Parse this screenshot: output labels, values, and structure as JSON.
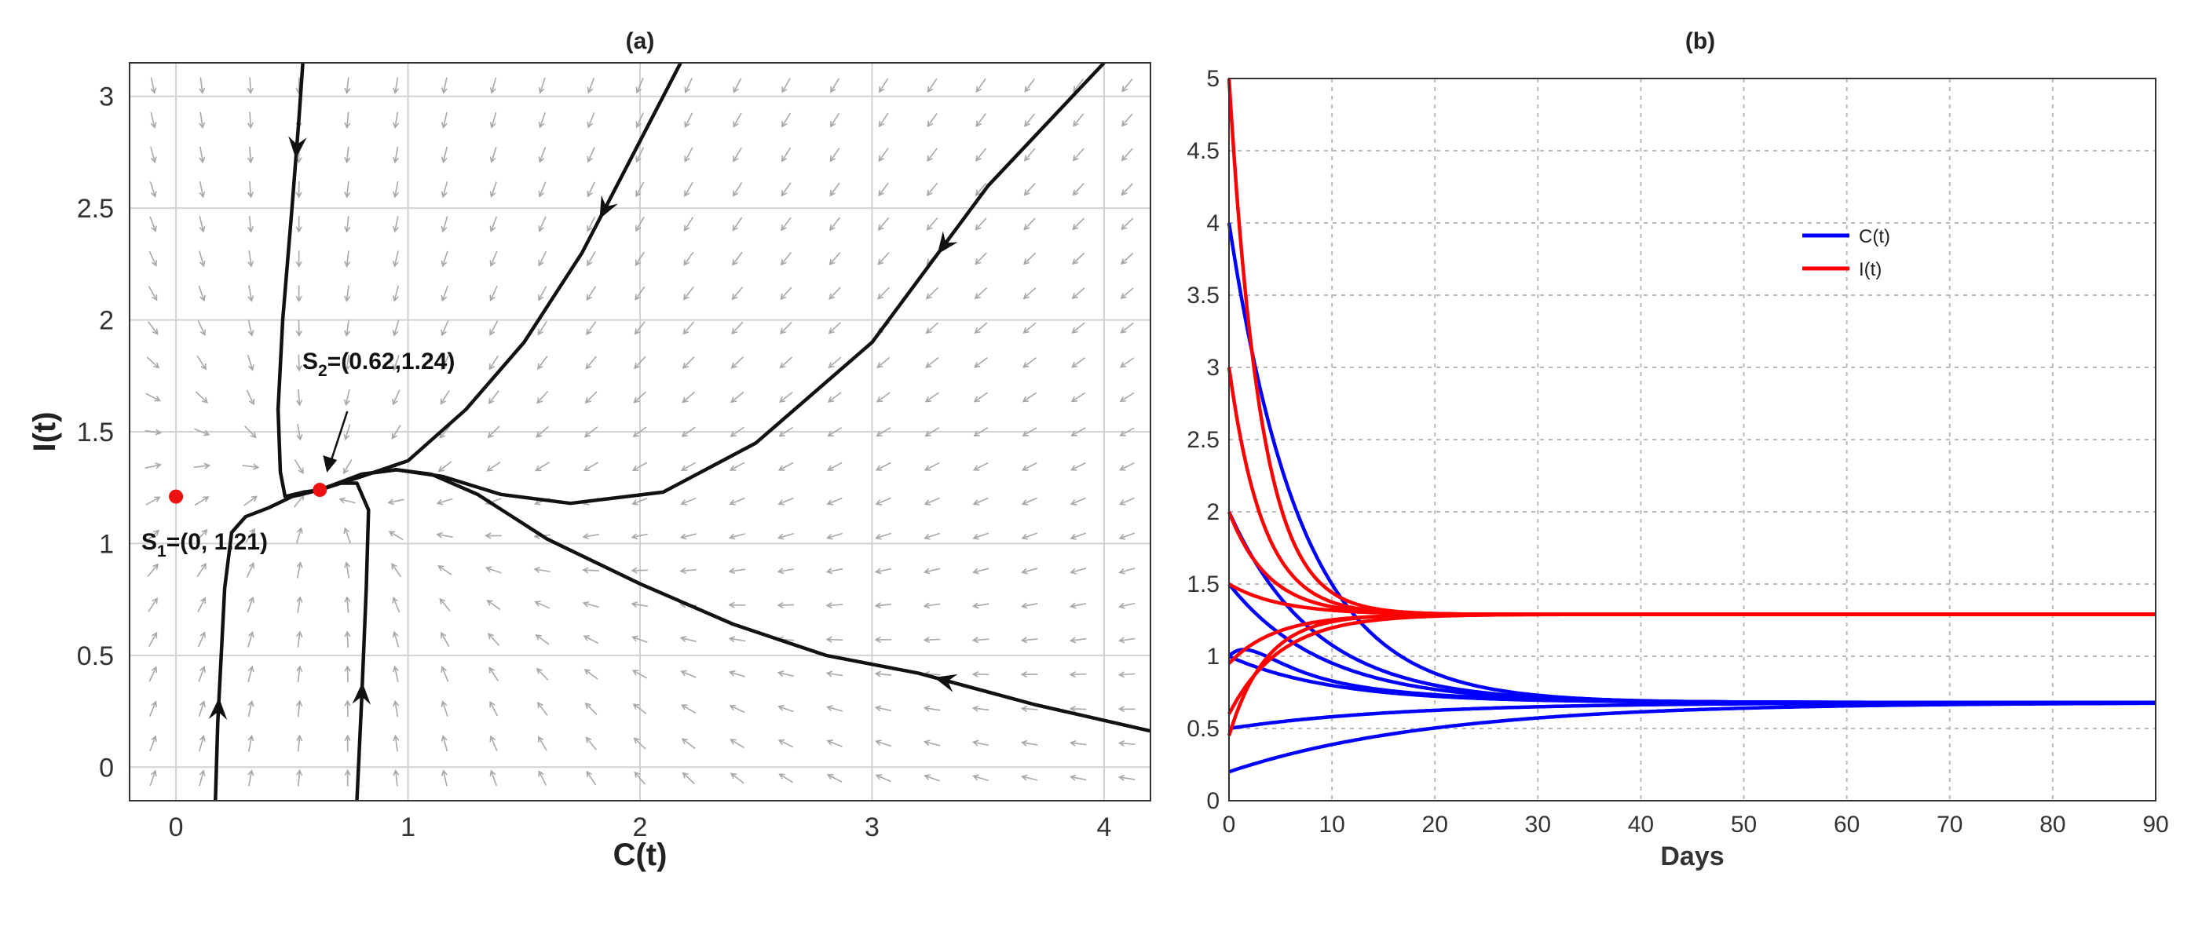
{
  "chart_data": [
    {
      "type": "line",
      "subtype": "phase-portrait",
      "title": "(a)",
      "xlabel": "C(t)",
      "ylabel": "I(t)",
      "xlim": [
        -0.2,
        4.2
      ],
      "ylim": [
        -0.15,
        3.15
      ],
      "xticks": [
        "0",
        "1",
        "2",
        "3",
        "4"
      ],
      "yticks": [
        "0",
        "0.5",
        "1",
        "1.5",
        "2",
        "2.5",
        "3"
      ],
      "grid": true,
      "vector_field": "gray arrows on a regular grid pointing toward the interior equilibrium",
      "equilibria": [
        {
          "name": "S1",
          "sub": "1",
          "value_text": "=(0, 1.21)",
          "x": 0,
          "y": 1.21
        },
        {
          "name": "S2",
          "sub": "2",
          "value_text": "=(0.62,1.24)",
          "x": 0.62,
          "y": 1.24
        }
      ],
      "trajectories": [
        {
          "name": "from-top-left",
          "points": [
            [
              0.55,
              3.2
            ],
            [
              0.53,
              2.9
            ],
            [
              0.5,
              2.5
            ],
            [
              0.46,
              2.0
            ],
            [
              0.44,
              1.6
            ],
            [
              0.45,
              1.32
            ],
            [
              0.47,
              1.21
            ],
            [
              0.55,
              1.23
            ],
            [
              0.62,
              1.24
            ]
          ],
          "arrow_at": 0.2
        },
        {
          "name": "from-top-middle",
          "points": [
            [
              2.2,
              3.2
            ],
            [
              1.95,
              2.7
            ],
            [
              1.75,
              2.3
            ],
            [
              1.5,
              1.9
            ],
            [
              1.25,
              1.6
            ],
            [
              1.0,
              1.37
            ],
            [
              0.8,
              1.3
            ],
            [
              0.62,
              1.24
            ]
          ],
          "arrow_at": 0.3
        },
        {
          "name": "from-top-right",
          "points": [
            [
              4.0,
              3.15
            ],
            [
              3.5,
              2.6
            ],
            [
              3.0,
              1.9
            ],
            [
              2.5,
              1.45
            ],
            [
              2.1,
              1.23
            ],
            [
              1.7,
              1.18
            ],
            [
              1.4,
              1.22
            ],
            [
              1.15,
              1.3
            ],
            [
              0.95,
              1.33
            ],
            [
              0.8,
              1.31
            ],
            [
              0.62,
              1.24
            ]
          ],
          "arrow_at": 0.25
        },
        {
          "name": "from-right",
          "points": [
            [
              4.25,
              0.15
            ],
            [
              3.7,
              0.28
            ],
            [
              3.2,
              0.42
            ],
            [
              2.8,
              0.5
            ],
            [
              2.4,
              0.64
            ],
            [
              2.0,
              0.82
            ],
            [
              1.6,
              1.02
            ],
            [
              1.3,
              1.22
            ],
            [
              1.1,
              1.31
            ],
            [
              0.95,
              1.33
            ],
            [
              0.8,
              1.31
            ],
            [
              0.62,
              1.24
            ]
          ],
          "arrow_at": 0.25
        },
        {
          "name": "from-bottom-left",
          "points": [
            [
              0.17,
              -0.15
            ],
            [
              0.18,
              0.2
            ],
            [
              0.21,
              0.8
            ],
            [
              0.24,
              1.05
            ],
            [
              0.3,
              1.12
            ],
            [
              0.4,
              1.16
            ],
            [
              0.5,
              1.21
            ],
            [
              0.62,
              1.24
            ]
          ],
          "arrow_at": 0.25
        },
        {
          "name": "from-bottom-middle",
          "points": [
            [
              0.78,
              -0.15
            ],
            [
              0.8,
              0.3
            ],
            [
              0.82,
              0.8
            ],
            [
              0.83,
              1.15
            ],
            [
              0.78,
              1.27
            ],
            [
              0.7,
              1.27
            ],
            [
              0.62,
              1.24
            ]
          ],
          "arrow_at": 0.3
        }
      ]
    },
    {
      "type": "line",
      "title": "(b)",
      "xlabel": "Days",
      "ylabel": "",
      "xlim": [
        0,
        90
      ],
      "ylim": [
        0,
        5
      ],
      "xticks": [
        "0",
        "10",
        "20",
        "30",
        "40",
        "50",
        "60",
        "70",
        "80",
        "90"
      ],
      "yticks": [
        "0",
        "0.5",
        "1",
        "1.5",
        "2",
        "2.5",
        "3",
        "3.5",
        "4",
        "4.5",
        "5"
      ],
      "grid": true,
      "legend": [
        {
          "label": "C(t)",
          "color": "#0000ff"
        },
        {
          "label": "I(t)",
          "color": "#ff0000"
        }
      ],
      "legend_position": "upper-middle-right",
      "equilibrium": {
        "C": 0.68,
        "I": 1.29
      },
      "series": [
        {
          "name": "C(t)",
          "color": "#0000ff",
          "c0": 4.0,
          "rate": 0.14
        },
        {
          "name": "C(t)",
          "color": "#0000ff",
          "c0": 2.0,
          "rate": 0.12
        },
        {
          "name": "C(t)",
          "color": "#0000ff",
          "c0": 1.5,
          "rate": 0.11
        },
        {
          "name": "C(t)",
          "color": "#0000ff",
          "c0": 1.0,
          "rate": 0.09,
          "hump": 0.3
        },
        {
          "name": "C(t)",
          "color": "#0000ff",
          "c0": 1.0,
          "rate": 0.1
        },
        {
          "name": "C(t)",
          "color": "#0000ff",
          "c0": 0.5,
          "rate": 0.06
        },
        {
          "name": "C(t)",
          "color": "#0000ff",
          "c0": 0.2,
          "rate": 0.05
        },
        {
          "name": "I(t)",
          "color": "#ff0000",
          "c0": 5.0,
          "rate": 0.32
        },
        {
          "name": "I(t)",
          "color": "#ff0000",
          "c0": 3.0,
          "rate": 0.3
        },
        {
          "name": "I(t)",
          "color": "#ff0000",
          "c0": 2.0,
          "rate": 0.26
        },
        {
          "name": "I(t)",
          "color": "#ff0000",
          "c0": 1.5,
          "rate": 0.2
        },
        {
          "name": "I(t)",
          "color": "#ff0000",
          "c0": 0.95,
          "rate": 0.22
        },
        {
          "name": "I(t)",
          "color": "#ff0000",
          "c0": 0.6,
          "rate": 0.2
        },
        {
          "name": "I(t)",
          "color": "#ff0000",
          "c0": 0.45,
          "rate": 0.28
        }
      ]
    }
  ]
}
